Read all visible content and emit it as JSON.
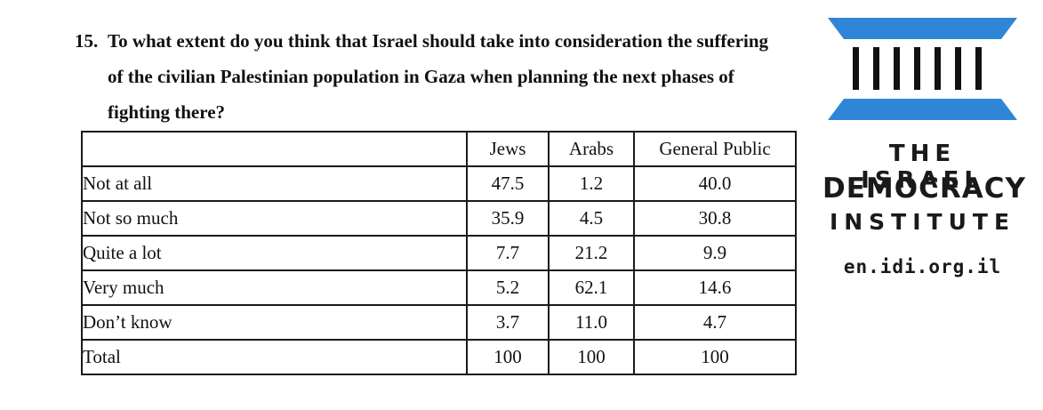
{
  "question": {
    "number": "15.",
    "text": "To what extent do you think that Israel should take into consideration the suffering of the civilian Palestinian population in Gaza when planning the next phases of fighting there?"
  },
  "table": {
    "headers": [
      "",
      "Jews",
      "Arabs",
      "General Public"
    ],
    "rows": [
      {
        "label": "Not at all",
        "jews": "47.5",
        "arabs": "1.2",
        "general": "40.0"
      },
      {
        "label": "Not so much",
        "jews": "35.9",
        "arabs": "4.5",
        "general": "30.8"
      },
      {
        "label": "Quite a lot",
        "jews": "7.7",
        "arabs": "21.2",
        "general": "9.9"
      },
      {
        "label": "Very much",
        "jews": "5.2",
        "arabs": "62.1",
        "general": "14.6"
      },
      {
        "label": "Don’t know",
        "jews": "3.7",
        "arabs": "11.0",
        "general": "4.7"
      },
      {
        "label": "Total",
        "jews": "100",
        "arabs": "100",
        "general": "100"
      }
    ]
  },
  "logo": {
    "line1": "THE ISRAEL",
    "line2": "DEMOCRACY",
    "line3": "INSTITUTE",
    "url": "en.idi.org.il",
    "accent_color": "#2f86d6",
    "pillar_color": "#111111",
    "icon": "columns-building-icon"
  }
}
